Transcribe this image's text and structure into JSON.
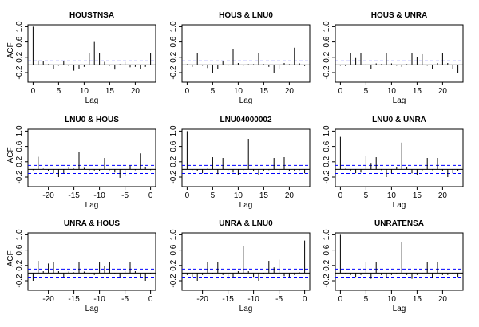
{
  "chart_data": {
    "type": "bar",
    "layout": "3x3 matrix of autocorrelation / cross-correlation plots",
    "y_axis_label": "ACF",
    "x_axis_label": "Lag",
    "ylim": [
      -0.45,
      1.05
    ],
    "y_ticks": [
      -0.2,
      0.2,
      0.6,
      1.0
    ],
    "y_tick_labels": [
      "-0.2",
      "0.2",
      "0.6",
      "1.0"
    ],
    "confidence_band": [
      -0.105,
      0.105
    ],
    "colors": {
      "bars": "#000000",
      "zero_line": "#000000",
      "confidence_lines": "#0000ff"
    },
    "panels": [
      {
        "title": "HOUSTNSA",
        "show_ylabel": true,
        "lag_start": 0,
        "xlim": [
          -1,
          24
        ],
        "x_ticks": [
          0,
          5,
          10,
          15,
          20
        ],
        "values": [
          1.0,
          0.12,
          0.1,
          0.02,
          -0.1,
          -0.02,
          0.1,
          -0.03,
          -0.15,
          -0.1,
          -0.05,
          0.3,
          0.6,
          0.3,
          0.08,
          -0.02,
          -0.12,
          0.02,
          0.08,
          -0.06,
          -0.05,
          -0.1,
          -0.05,
          0.3
        ]
      },
      {
        "title": "HOUS & LNU0",
        "show_ylabel": false,
        "lag_start": 0,
        "xlim": [
          -1,
          24
        ],
        "x_ticks": [
          0,
          5,
          10,
          15,
          20
        ],
        "values": [
          0.02,
          -0.05,
          0.3,
          -0.02,
          -0.08,
          -0.22,
          -0.1,
          0.1,
          -0.02,
          0.42,
          0.05,
          -0.02,
          0.02,
          0.02,
          0.3,
          0.02,
          -0.05,
          -0.2,
          -0.1,
          0.05,
          0.02,
          0.45,
          0.04,
          -0.03
        ]
      },
      {
        "title": "HOUS & UNRA",
        "show_ylabel": false,
        "lag_start": 0,
        "xlim": [
          -1,
          24
        ],
        "x_ticks": [
          0,
          5,
          10,
          15,
          20
        ],
        "values": [
          -0.02,
          -0.03,
          0.32,
          0.18,
          0.3,
          0.02,
          -0.1,
          0.04,
          0.02,
          0.3,
          0.04,
          -0.02,
          -0.05,
          0.02,
          0.32,
          0.2,
          0.28,
          -0.02,
          -0.1,
          0.05,
          0.3,
          0.05,
          -0.1,
          -0.2
        ]
      },
      {
        "title": "LNU0 & HOUS",
        "show_ylabel": true,
        "lag_start": -23,
        "xlim": [
          -24,
          1
        ],
        "x_ticks": [
          -20,
          -15,
          -10,
          -5,
          0
        ],
        "values": [
          -0.02,
          0.33,
          0.02,
          -0.05,
          -0.1,
          -0.2,
          -0.1,
          0.05,
          0.02,
          0.45,
          0.04,
          -0.03,
          -0.03,
          -0.05,
          0.3,
          -0.02,
          -0.08,
          -0.22,
          -0.18,
          0.1,
          -0.02,
          0.42,
          0.05,
          -0.02
        ]
      },
      {
        "title": "LNU04000002",
        "show_ylabel": false,
        "lag_start": 0,
        "xlim": [
          -1,
          24
        ],
        "x_ticks": [
          0,
          5,
          10,
          15,
          20
        ],
        "values": [
          1.0,
          -0.02,
          -0.05,
          -0.1,
          0.02,
          0.32,
          -0.12,
          0.3,
          -0.05,
          -0.08,
          -0.15,
          -0.02,
          0.8,
          -0.05,
          -0.15,
          -0.05,
          -0.02,
          0.3,
          -0.12,
          0.32,
          -0.05,
          -0.05,
          -0.02,
          -0.1
        ]
      },
      {
        "title": "LNU0 & UNRA",
        "show_ylabel": false,
        "lag_start": 0,
        "xlim": [
          -1,
          24
        ],
        "x_ticks": [
          0,
          5,
          10,
          15,
          20
        ],
        "values": [
          0.85,
          0.02,
          -0.05,
          -0.1,
          -0.08,
          0.35,
          0.15,
          0.32,
          -0.02,
          -0.2,
          -0.1,
          0.05,
          0.7,
          0.05,
          -0.1,
          -0.15,
          -0.05,
          0.3,
          -0.02,
          0.3,
          -0.05,
          -0.2,
          -0.1,
          -0.05
        ]
      },
      {
        "title": "UNRA & HOUS",
        "show_ylabel": true,
        "lag_start": -23,
        "xlim": [
          -24,
          1
        ],
        "x_ticks": [
          -20,
          -15,
          -10,
          -5,
          0
        ],
        "values": [
          -0.2,
          0.32,
          0.05,
          0.25,
          0.3,
          0.05,
          -0.1,
          0.04,
          0.02,
          0.3,
          0.04,
          -0.02,
          -0.05,
          0.3,
          0.18,
          0.28,
          -0.03,
          -0.1,
          0.05,
          0.3,
          0.05,
          -0.1,
          -0.2,
          -0.02
        ]
      },
      {
        "title": "UNRA & LNU0",
        "show_ylabel": false,
        "lag_start": -23,
        "xlim": [
          -24,
          1
        ],
        "x_ticks": [
          -20,
          -15,
          -10,
          -5,
          0
        ],
        "values": [
          -0.05,
          -0.1,
          -0.2,
          -0.05,
          0.3,
          -0.02,
          0.3,
          -0.05,
          -0.15,
          -0.1,
          0.05,
          0.7,
          0.05,
          -0.1,
          -0.2,
          -0.02,
          0.32,
          0.15,
          0.35,
          -0.08,
          -0.1,
          -0.05,
          0.02,
          0.85
        ]
      },
      {
        "title": "UNRATENSA",
        "show_ylabel": false,
        "lag_start": 0,
        "xlim": [
          -1,
          24
        ],
        "x_ticks": [
          0,
          5,
          10,
          15,
          20
        ],
        "values": [
          1.0,
          -0.02,
          -0.05,
          -0.1,
          -0.05,
          0.3,
          -0.15,
          0.3,
          -0.05,
          -0.12,
          -0.05,
          -0.02,
          0.8,
          -0.05,
          -0.15,
          -0.05,
          -0.02,
          0.28,
          -0.12,
          0.3,
          -0.05,
          -0.05,
          -0.02,
          -0.1
        ]
      }
    ]
  }
}
